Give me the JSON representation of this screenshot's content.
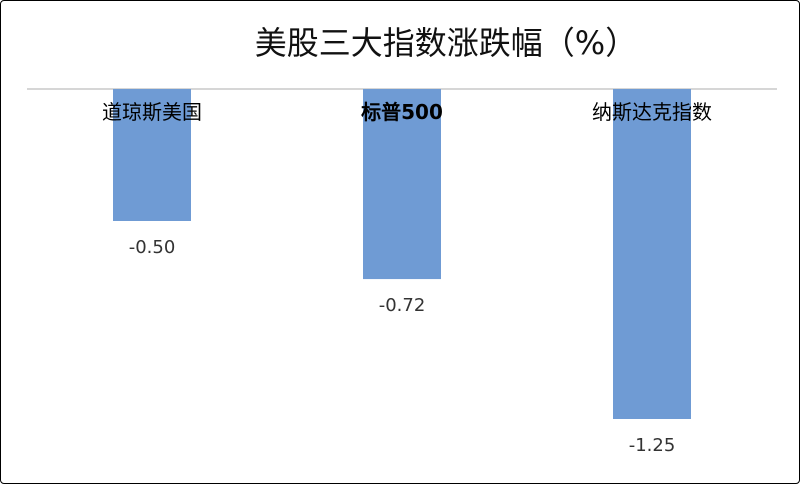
{
  "chart_data": {
    "type": "bar",
    "title": "美股三大指数涨跌幅（%）",
    "categories": [
      "道琼斯美国",
      "标普500",
      "纳斯达克指数"
    ],
    "values": [
      -0.5,
      -0.72,
      -1.25
    ],
    "value_labels": [
      "-0.50",
      "-0.72",
      "-1.25"
    ],
    "ylim": [
      -1.4,
      0
    ],
    "grid": false,
    "legend": "none",
    "bar_color": "#6f9bd4",
    "axis_color": "#c8c8c8"
  }
}
